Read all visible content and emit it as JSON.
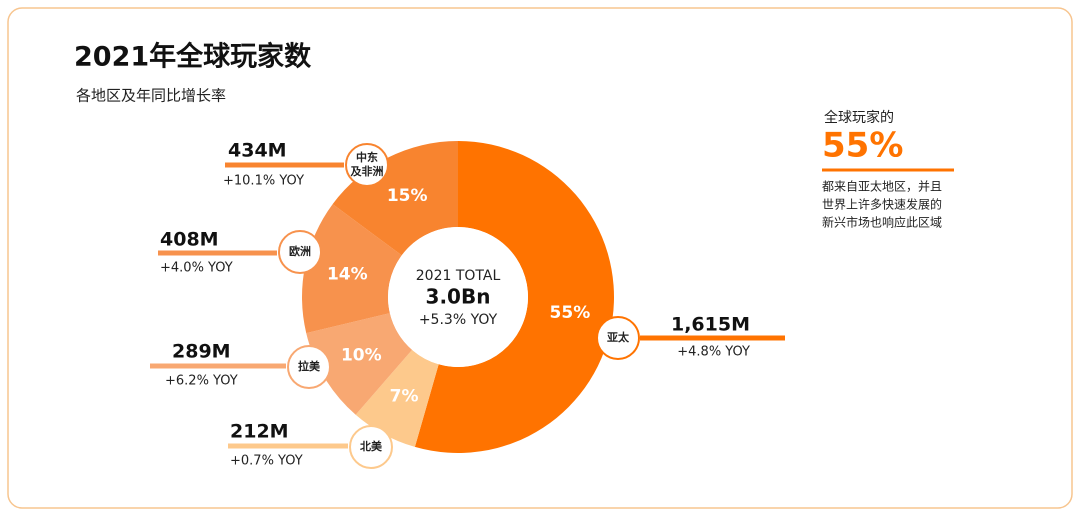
{
  "chart_data": {
    "type": "donut",
    "title": "2021年全球玩家数",
    "subtitle": "各地区及年同比增长率",
    "categories": [
      "亚太",
      "北美",
      "拉美",
      "欧洲",
      "中东\n及非洲"
    ],
    "values": [
      55,
      7,
      10,
      14,
      15
    ],
    "value_labels": [
      "55%",
      "7%",
      "10%",
      "14%",
      "15%"
    ],
    "colors": [
      "#ff7300",
      "#fdc98c",
      "#f8a872",
      "#f7924d",
      "#f8842f"
    ],
    "players": [
      1615,
      212,
      289,
      408,
      434
    ],
    "players_labels": [
      "1,615M",
      "212M",
      "289M",
      "408M",
      "434M"
    ],
    "yoy": [
      4.8,
      0.7,
      6.2,
      4.0,
      10.1
    ],
    "yoy_labels": [
      "+4.8% YOY",
      "+0.7% YOY",
      "+6.2% YOY",
      "+4.0% YOY",
      "+10.1% YOY"
    ],
    "center": {
      "label": "2021 TOTAL",
      "total": 3.0,
      "total_label": "3.0Bn",
      "yoy": 5.3,
      "yoy_label": "+5.3% YOY"
    },
    "annotation": {
      "lead": "全球玩家的",
      "value": 55,
      "value_label": "55%",
      "lines": [
        "都来自亚太地区，并且",
        "世界上许多快速发展的",
        "新兴市场也响应此区域"
      ]
    }
  }
}
